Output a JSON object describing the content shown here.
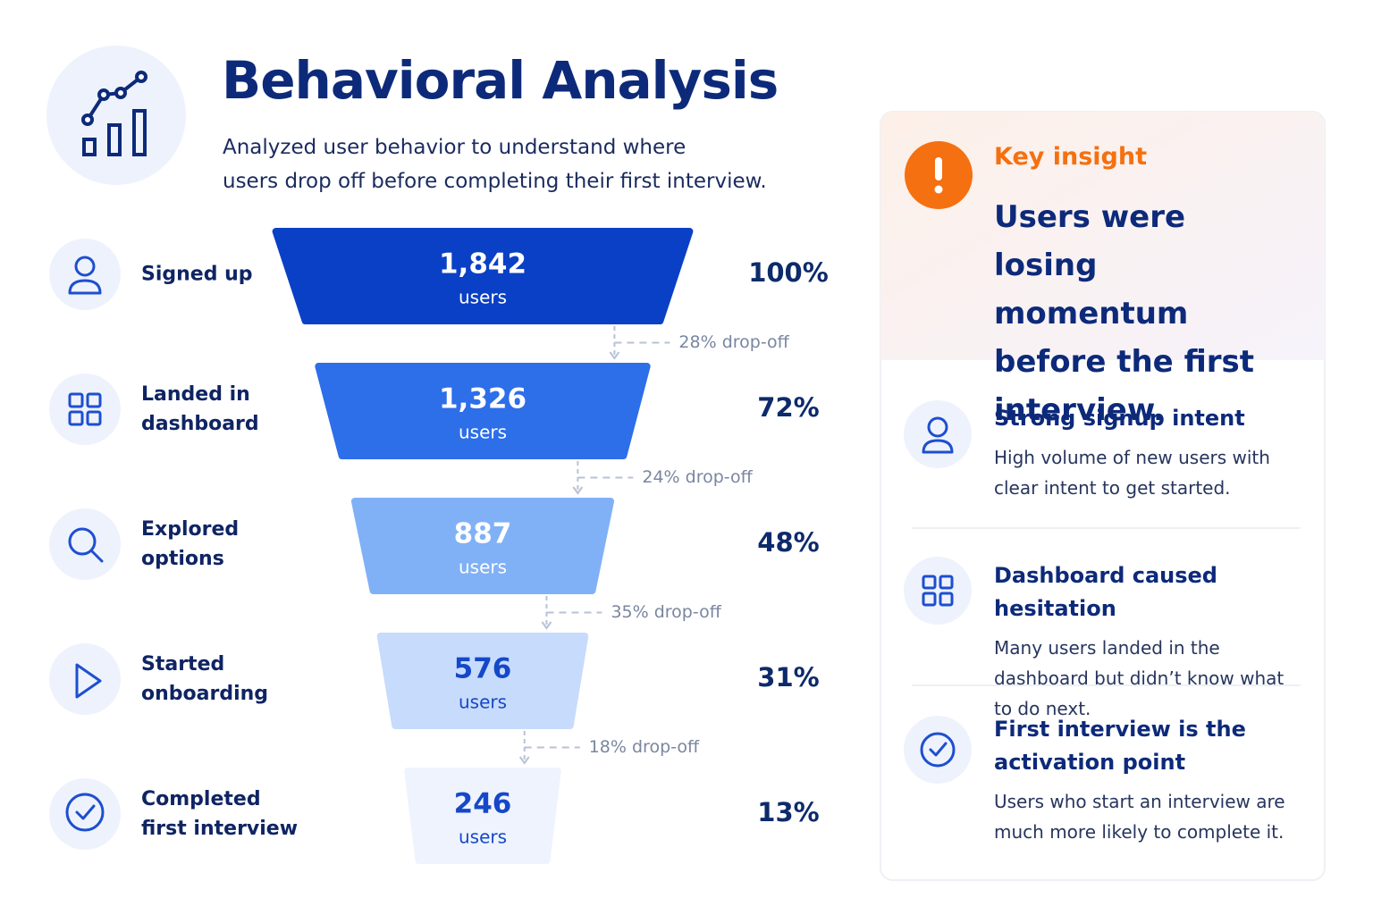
{
  "chart_data": {
    "type": "funnel",
    "title": "Behavioral Analysis",
    "subtitle": [
      "Analyzed user behavior to understand where",
      "users drop off before completing their first interview."
    ],
    "categories": [
      "Signed up",
      "Landed in dashboard",
      "Explored options",
      "Started onboarding",
      "Completed first interview"
    ],
    "values": [
      1842,
      1326,
      887,
      576,
      246
    ],
    "value_labels": [
      "1,842",
      "1,326",
      "887",
      "576",
      "246"
    ],
    "unit": "users",
    "percents": [
      100,
      72,
      48,
      31,
      13
    ],
    "percent_labels": [
      "100%",
      "72%",
      "48%",
      "31%",
      "13%"
    ],
    "dropoffs": [
      28,
      24,
      35,
      18
    ],
    "dropoff_labels": [
      "28% drop-off",
      "24% drop-off",
      "35% drop-off",
      "18% drop-off"
    ],
    "colors": [
      "#0a40c6",
      "#2d6ee9",
      "#80b1f7",
      "#c7dbfc",
      "#eef3fe"
    ],
    "text_colors": [
      "#ffffff",
      "#ffffff",
      "#ffffff",
      "#1548c8",
      "#1548c8"
    ]
  },
  "insight": {
    "label": "Key insight",
    "headline": "Users were losing momentum before the first interview.",
    "items": [
      {
        "title": "Strong signup intent",
        "text": "High volume of new users with clear intent to get started."
      },
      {
        "title": "Dashboard caused hesitation",
        "text": "Many users landed in the dashboard but didn’t know what to do next."
      },
      {
        "title": "First interview is the activation point",
        "text": "Users who start an interview are much more likely to complete it."
      }
    ]
  }
}
